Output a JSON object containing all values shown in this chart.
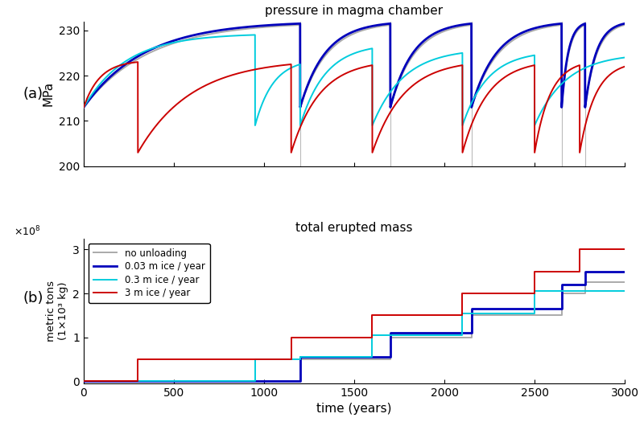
{
  "title_a": "pressure in magma chamber",
  "title_b": "total erupted mass",
  "xlabel": "time (years)",
  "ylabel_a": "MPa",
  "xlim": [
    0,
    3000
  ],
  "ylim_a": [
    200,
    232
  ],
  "ylim_b": [
    -5000000.0,
    325000000.0
  ],
  "yticks_a": [
    200,
    210,
    220,
    230
  ],
  "yticks_b": [
    0,
    100000000.0,
    200000000.0,
    300000000.0
  ],
  "xticks": [
    0,
    500,
    1000,
    1500,
    2000,
    2500,
    3000
  ],
  "colors": {
    "gray": "#aaaaaa",
    "blue": "#0000bb",
    "cyan": "#00ccdd",
    "red": "#cc0000"
  },
  "legend_labels": [
    "no unloading",
    "0.03 m ice / year",
    "0.3 m ice / year",
    "3 m ice / year"
  ],
  "panel_labels": [
    "(a)",
    "(b)"
  ],
  "eruption_vlines": [
    1200,
    1700,
    2150,
    2650,
    2780
  ],
  "p_start": 213.0,
  "p_max_gray_blue": 231.2,
  "p_max_cyan1": 229.0,
  "p_max_cyan2": 222.0,
  "p_after_red1": 203.0,
  "p_max_red": 222.5,
  "p_after_cyan1": 209.0,
  "p_after_erupt": 203.0
}
